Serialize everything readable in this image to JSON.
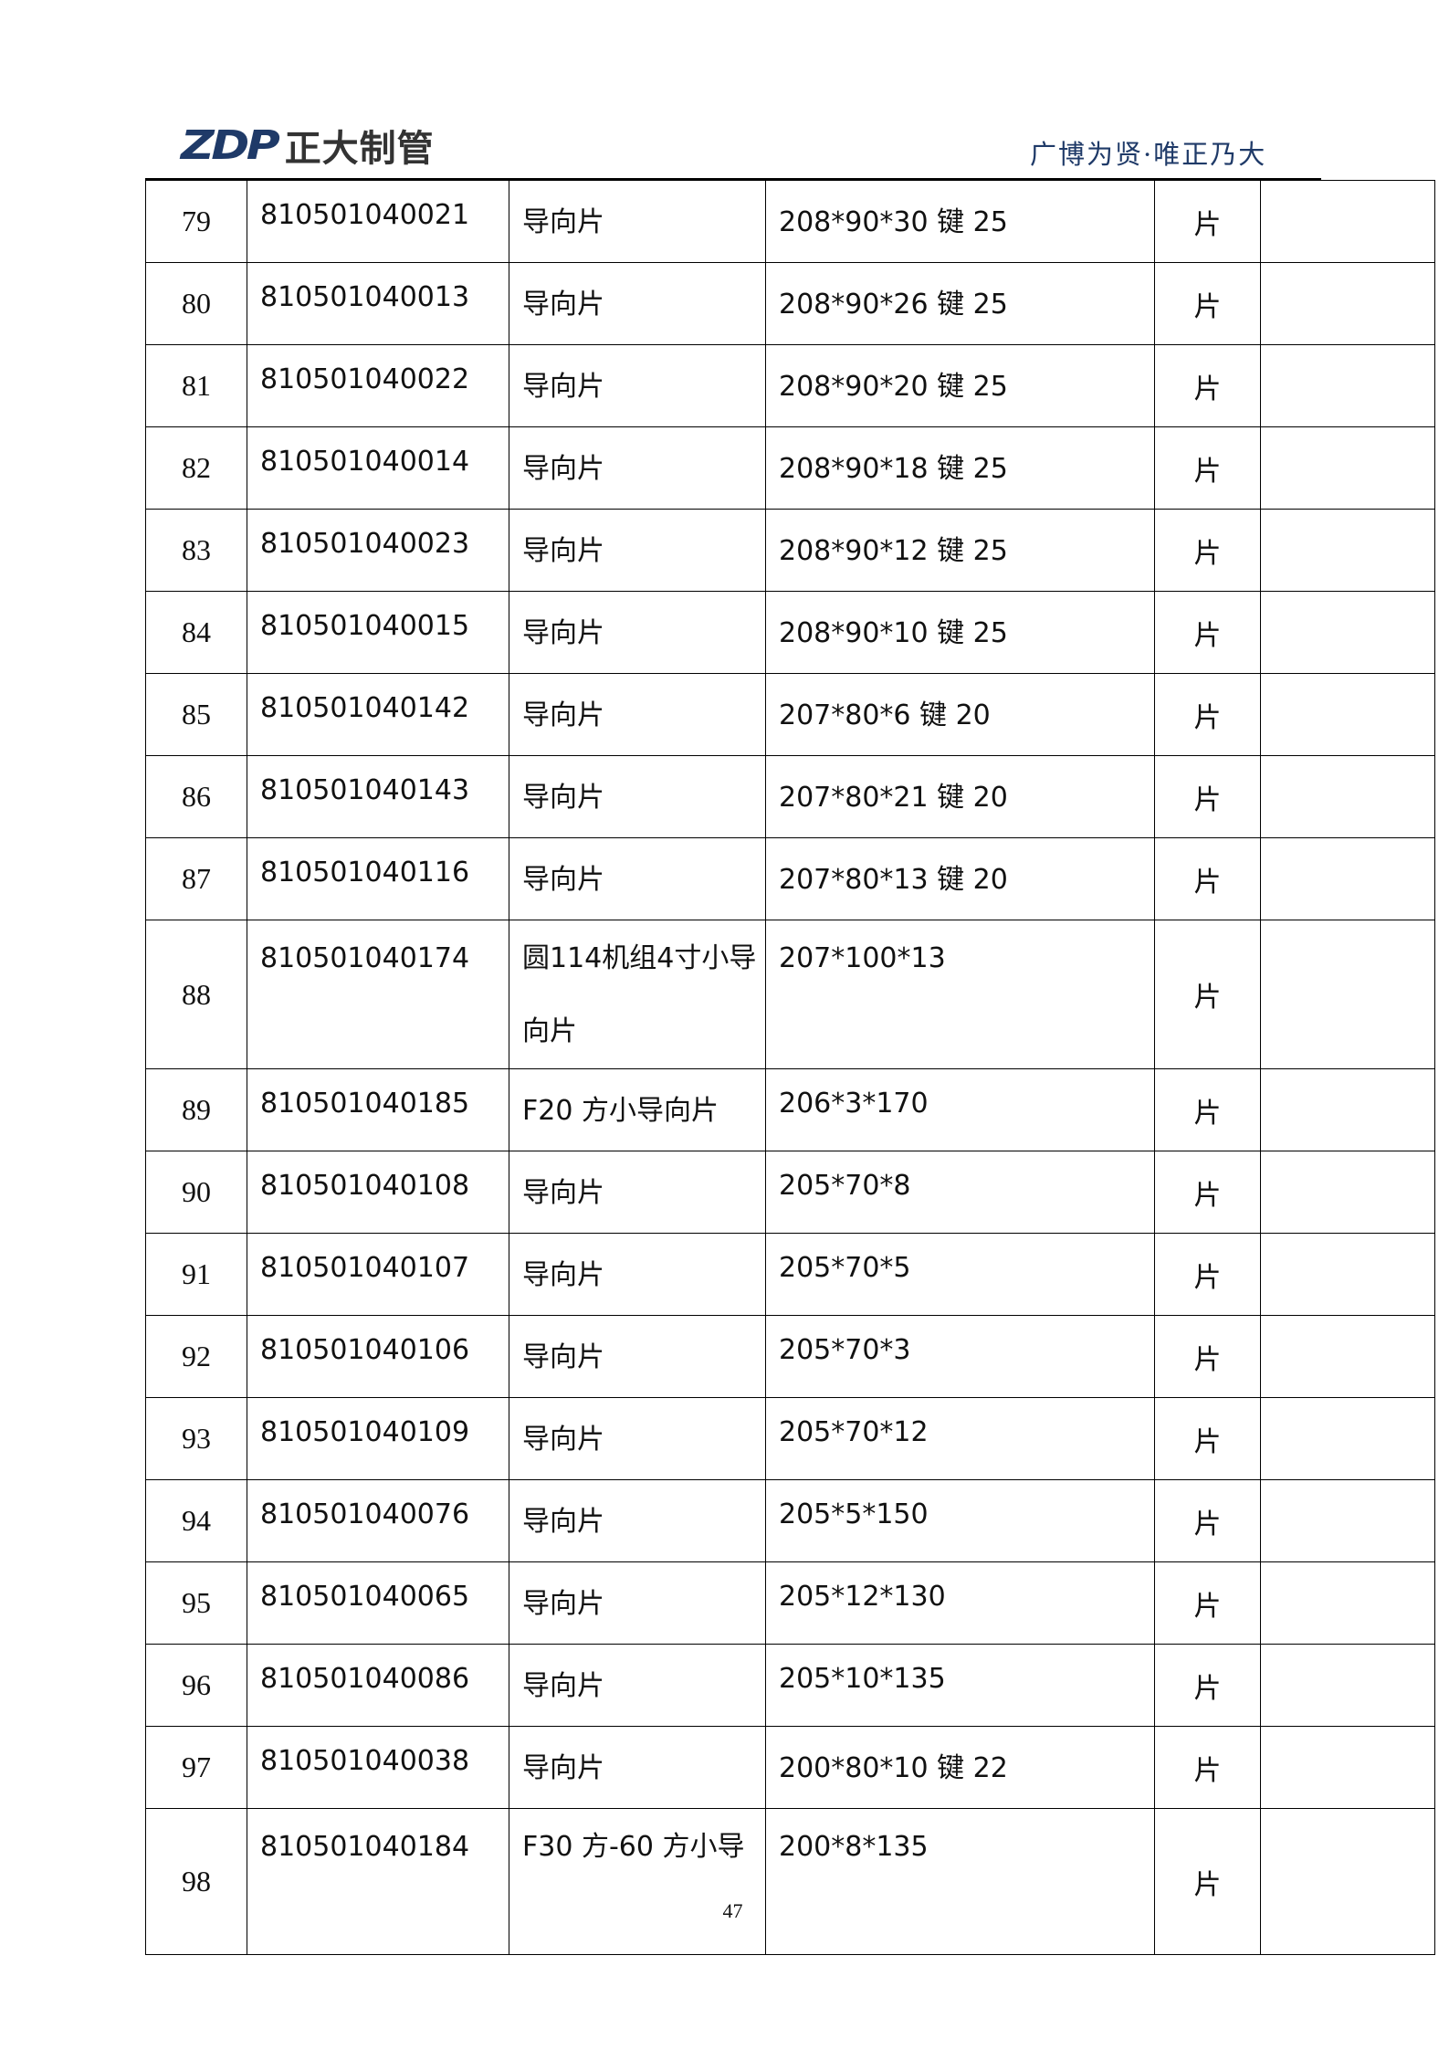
{
  "header": {
    "logo_mark": "ZDP",
    "logo_name": "正大制管",
    "tagline": "广博为贤·唯正乃大",
    "brand_color": "#1f3a68"
  },
  "rows": [
    {
      "no": "79",
      "code": "810501040021",
      "name": "导向片",
      "spec": "208*90*30 键 25",
      "unit": "片",
      "note": ""
    },
    {
      "no": "80",
      "code": "810501040013",
      "name": "导向片",
      "spec": "208*90*26 键 25",
      "unit": "片",
      "note": ""
    },
    {
      "no": "81",
      "code": "810501040022",
      "name": "导向片",
      "spec": "208*90*20 键 25",
      "unit": "片",
      "note": ""
    },
    {
      "no": "82",
      "code": "810501040014",
      "name": "导向片",
      "spec": "208*90*18 键 25",
      "unit": "片",
      "note": ""
    },
    {
      "no": "83",
      "code": "810501040023",
      "name": "导向片",
      "spec": "208*90*12 键 25",
      "unit": "片",
      "note": ""
    },
    {
      "no": "84",
      "code": "810501040015",
      "name": "导向片",
      "spec": "208*90*10 键 25",
      "unit": "片",
      "note": ""
    },
    {
      "no": "85",
      "code": "810501040142",
      "name": "导向片",
      "spec": "207*80*6 键 20",
      "unit": "片",
      "note": ""
    },
    {
      "no": "86",
      "code": "810501040143",
      "name": "导向片",
      "spec": "207*80*21 键 20",
      "unit": "片",
      "note": ""
    },
    {
      "no": "87",
      "code": "810501040116",
      "name": "导向片",
      "spec": "207*80*13 键 20",
      "unit": "片",
      "note": ""
    },
    {
      "no": "88",
      "code": "810501040174",
      "name": "圆114机组4寸小导向片",
      "spec": "207*100*13",
      "unit": "片",
      "note": ""
    },
    {
      "no": "89",
      "code": "810501040185",
      "name": "F20 方小导向片",
      "spec": "206*3*170",
      "unit": "片",
      "note": ""
    },
    {
      "no": "90",
      "code": "810501040108",
      "name": "导向片",
      "spec": "205*70*8",
      "unit": "片",
      "note": ""
    },
    {
      "no": "91",
      "code": "810501040107",
      "name": "导向片",
      "spec": "205*70*5",
      "unit": "片",
      "note": ""
    },
    {
      "no": "92",
      "code": "810501040106",
      "name": "导向片",
      "spec": "205*70*3",
      "unit": "片",
      "note": ""
    },
    {
      "no": "93",
      "code": "810501040109",
      "name": "导向片",
      "spec": "205*70*12",
      "unit": "片",
      "note": ""
    },
    {
      "no": "94",
      "code": "810501040076",
      "name": "导向片",
      "spec": "205*5*150",
      "unit": "片",
      "note": ""
    },
    {
      "no": "95",
      "code": "810501040065",
      "name": "导向片",
      "spec": "205*12*130",
      "unit": "片",
      "note": ""
    },
    {
      "no": "96",
      "code": "810501040086",
      "name": "导向片",
      "spec": "205*10*135",
      "unit": "片",
      "note": ""
    },
    {
      "no": "97",
      "code": "810501040038",
      "name": "导向片",
      "spec": "200*80*10 键 22",
      "unit": "片",
      "note": ""
    },
    {
      "no": "98",
      "code": "810501040184",
      "name": "F30 方-60 方小导",
      "spec": "200*8*135",
      "unit": "片",
      "note": ""
    }
  ],
  "footer": {
    "page_number": "47"
  }
}
